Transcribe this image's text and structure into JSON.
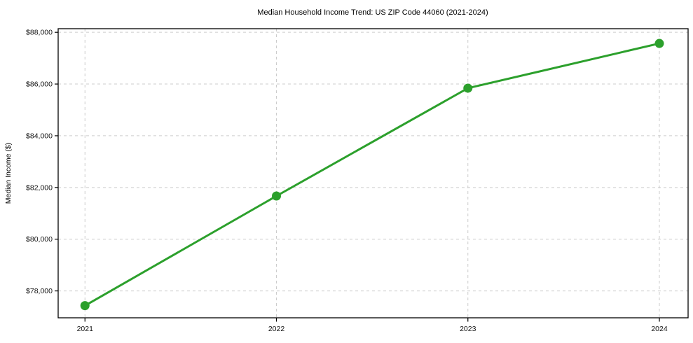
{
  "chart_data": {
    "type": "line",
    "title": "Median Household Income Trend: US ZIP Code 44060 (2021-2024)",
    "xlabel": "",
    "ylabel": "Median Income ($)",
    "x": [
      2021,
      2022,
      2023,
      2024
    ],
    "x_tick_labels": [
      "2021",
      "2022",
      "2023",
      "2024"
    ],
    "series": [
      {
        "name": "Median Household Income",
        "values": [
          77430,
          81670,
          85840,
          87570
        ]
      }
    ],
    "y_ticks": [
      78000,
      80000,
      82000,
      84000,
      86000,
      88000
    ],
    "y_tick_labels": [
      "$78,000",
      "$80,000",
      "$82,000",
      "$84,000",
      "$86,000",
      "$88,000"
    ],
    "xlim": [
      2020.86,
      2024.15
    ],
    "ylim": [
      76960,
      88140
    ],
    "grid": "dashed-both-axes",
    "legend": "none",
    "line_color": "#2ca02c",
    "marker": "circle",
    "marker_size": 6.5,
    "grid_color": "#cccccc",
    "axis_color": "#000000",
    "background_color": "#ffffff"
  }
}
